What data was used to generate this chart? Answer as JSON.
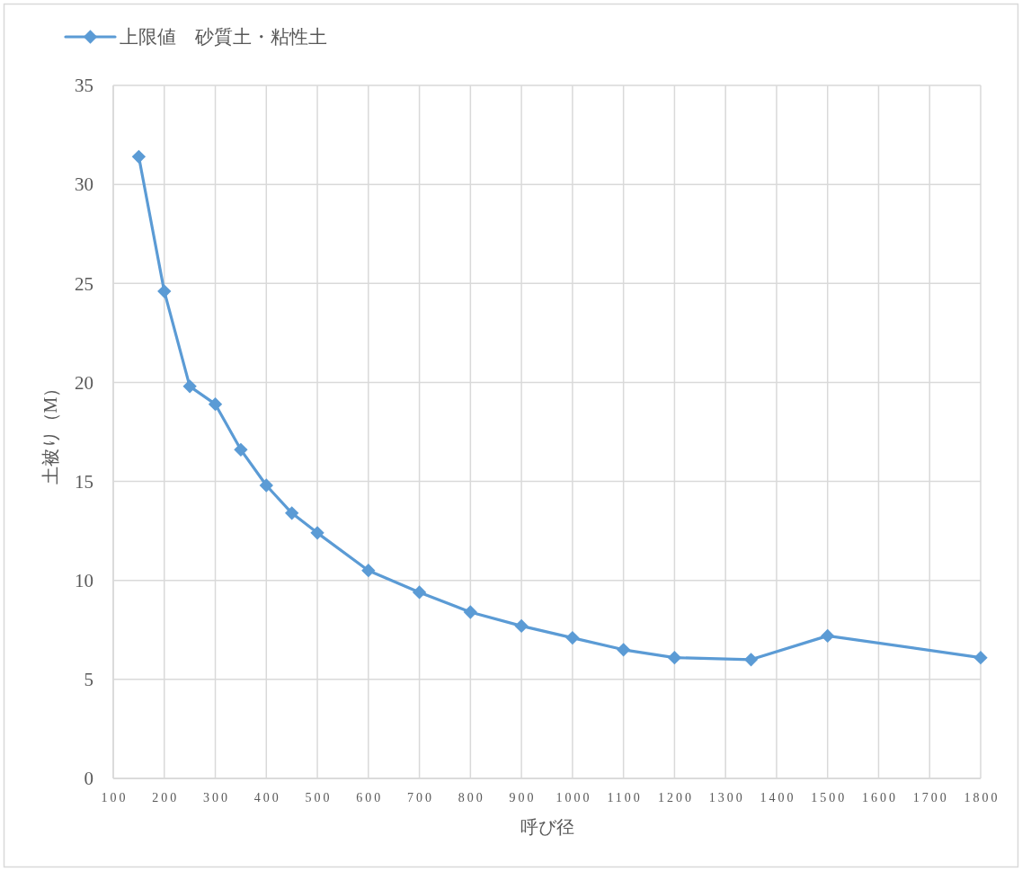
{
  "chart_data": {
    "type": "line",
    "xlabel": "呼び径",
    "ylabel": "土被り（M）",
    "x": [
      150,
      200,
      250,
      300,
      350,
      400,
      450,
      500,
      600,
      700,
      800,
      900,
      1000,
      1100,
      1200,
      1350,
      1500,
      1800
    ],
    "series": [
      {
        "name": "上限値　砂質土・粘性土",
        "color": "#5b9bd5",
        "values": [
          31.4,
          24.6,
          19.8,
          18.9,
          16.6,
          14.8,
          13.4,
          12.4,
          10.5,
          9.4,
          8.4,
          7.7,
          7.1,
          6.5,
          6.1,
          6.0,
          7.2,
          6.1
        ]
      }
    ],
    "xlim": [
      100,
      1800
    ],
    "xticks": [
      100,
      200,
      300,
      400,
      500,
      600,
      700,
      800,
      900,
      1000,
      1100,
      1200,
      1300,
      1400,
      1500,
      1600,
      1700,
      1800
    ],
    "ylim": [
      0,
      35
    ],
    "yticks": [
      0,
      5,
      10,
      15,
      20,
      25,
      30,
      35
    ],
    "grid": true,
    "legend": "top left",
    "marker": "diamond"
  }
}
